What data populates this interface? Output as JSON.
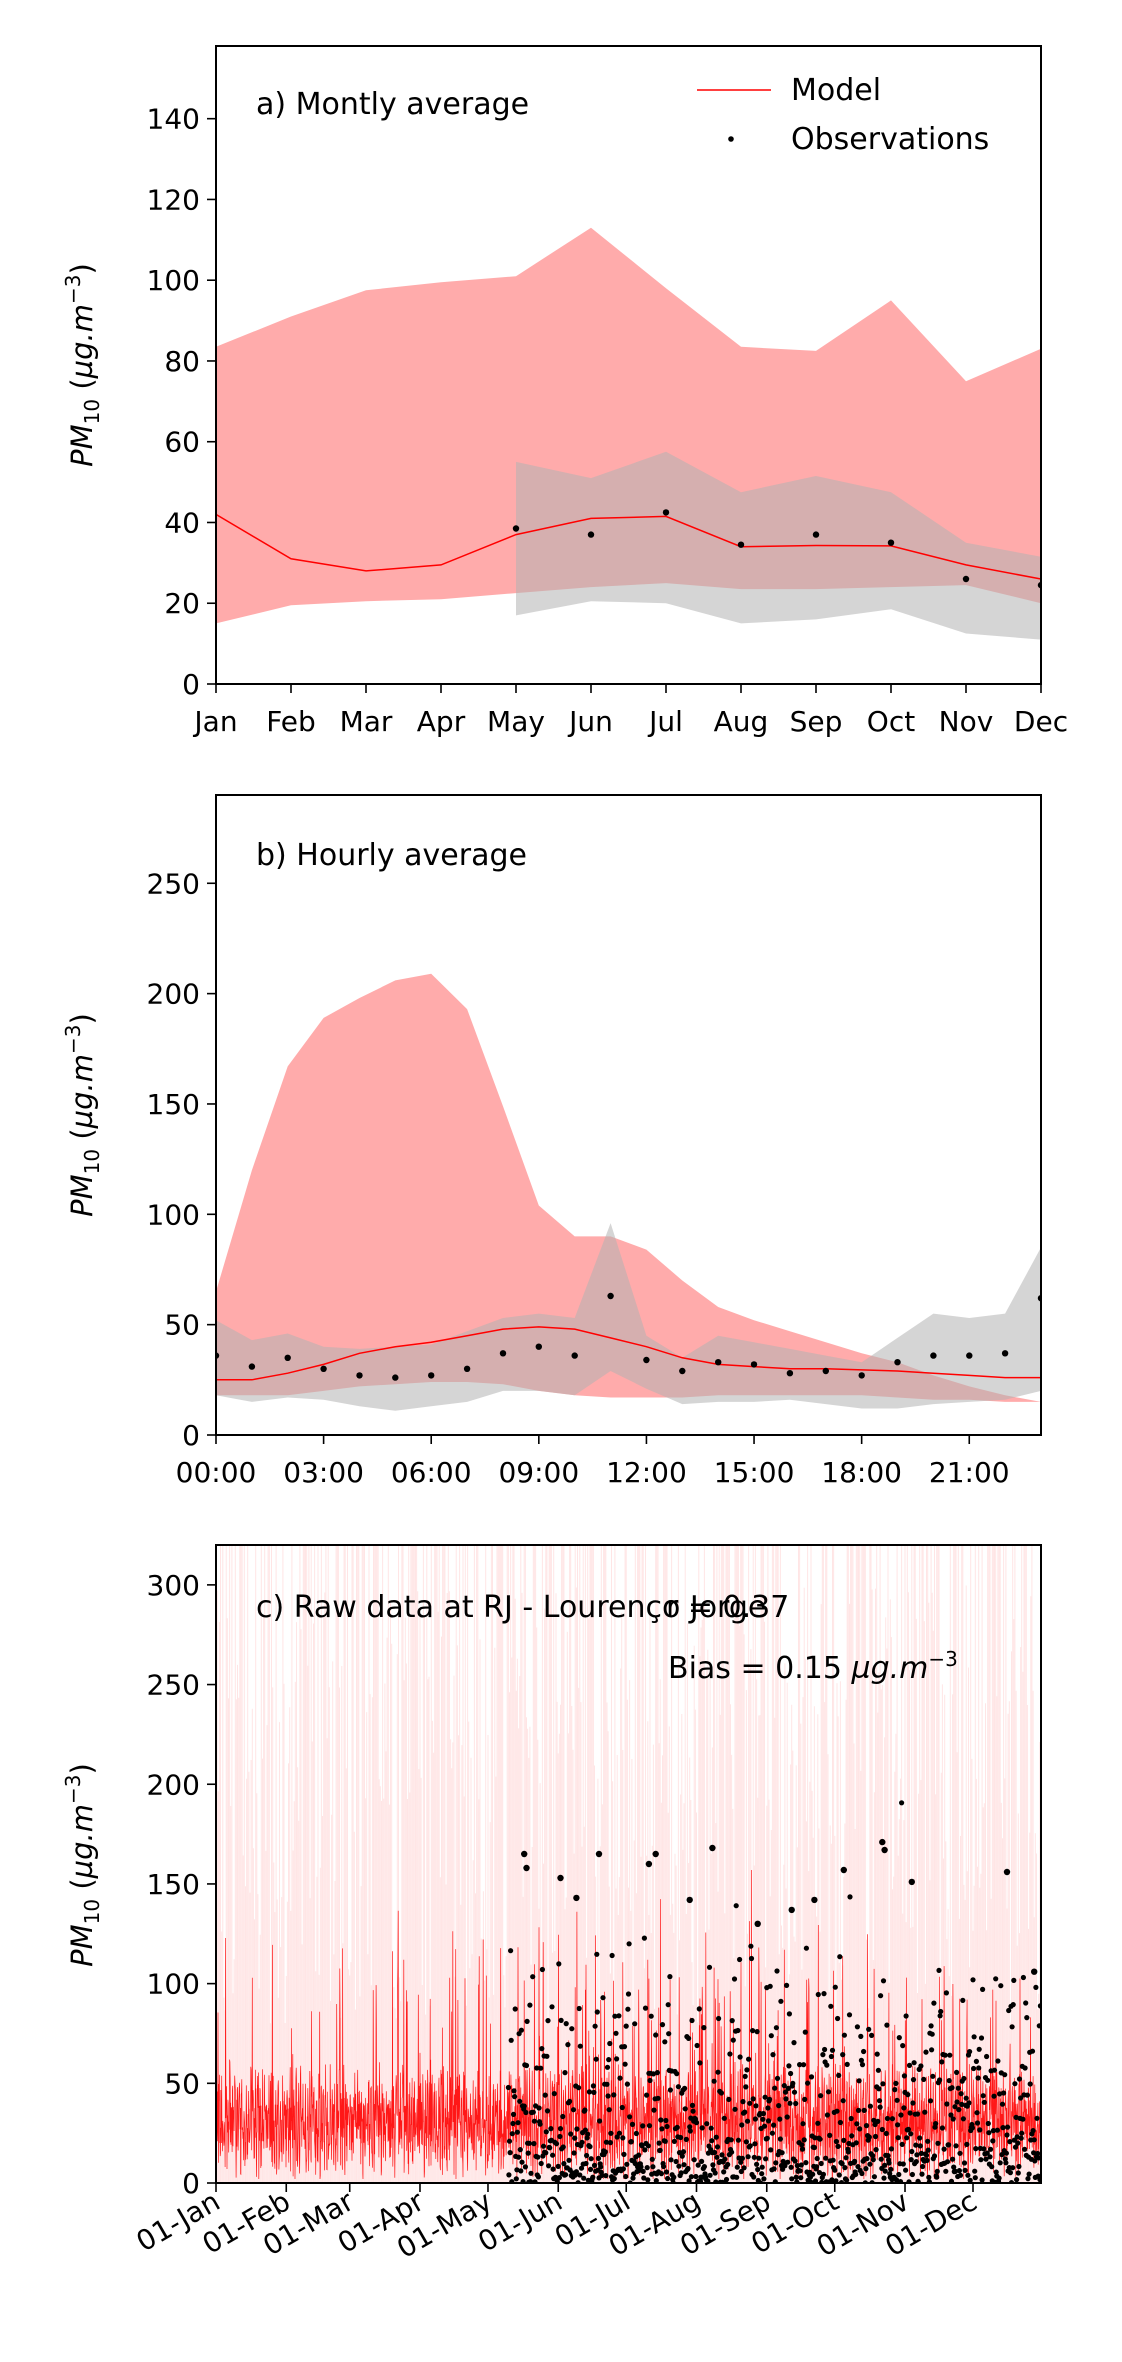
{
  "chart_data": [
    {
      "type": "line",
      "panel_label": "a) Montly average",
      "ylabel": "PM_10 (µg.m^-3)",
      "categories": [
        "Jan",
        "Feb",
        "Mar",
        "Apr",
        "May",
        "Jun",
        "Jul",
        "Aug",
        "Sep",
        "Oct",
        "Nov",
        "Dec"
      ],
      "xlim": [
        0,
        11
      ],
      "ylim": [
        0,
        158
      ],
      "yticks": [
        0,
        20,
        40,
        60,
        80,
        100,
        120,
        140
      ],
      "legend": {
        "position": "top-right",
        "entries": [
          "Model",
          "Observations"
        ]
      },
      "series": [
        {
          "name": "Model",
          "role": "line",
          "color": "#ff0000",
          "values": [
            42,
            31,
            28,
            29.5,
            37,
            41,
            41.5,
            34,
            34.3,
            34.2,
            29.5,
            26
          ]
        },
        {
          "name": "Observations",
          "role": "points",
          "color": "#000000",
          "x": [
            4,
            5,
            6,
            7,
            8,
            9,
            10,
            11
          ],
          "values": [
            38.5,
            37,
            42.5,
            34.5,
            37,
            35,
            26,
            24.5
          ]
        },
        {
          "role": "band",
          "color": "#ff6666",
          "lower": [
            15,
            19.5,
            20.5,
            21,
            22.5,
            24,
            25,
            23.5,
            23.5,
            24,
            24.5,
            20
          ],
          "upper": [
            83.5,
            91,
            97.5,
            99.5,
            101,
            113,
            98,
            83.5,
            82.5,
            95,
            75,
            83
          ]
        },
        {
          "role": "band",
          "color": "#b3b3b3",
          "x": [
            4,
            5,
            6,
            7,
            8,
            9,
            10,
            11
          ],
          "lower": [
            17,
            20.5,
            20,
            15,
            16,
            18.5,
            12.5,
            11
          ],
          "upper": [
            55,
            51,
            57.5,
            47.5,
            51.5,
            47.5,
            35,
            31.5
          ]
        }
      ]
    },
    {
      "type": "line",
      "panel_label": "b) Hourly average",
      "ylabel": "PM_10 (µg.m^-3)",
      "x": [
        0,
        1,
        2,
        3,
        4,
        5,
        6,
        7,
        8,
        9,
        10,
        11,
        12,
        13,
        14,
        15,
        16,
        17,
        18,
        19,
        20,
        21,
        22,
        23
      ],
      "xticks": [
        0,
        3,
        6,
        9,
        12,
        15,
        18,
        21
      ],
      "xticklabels": [
        "00:00",
        "03:00",
        "06:00",
        "09:00",
        "12:00",
        "15:00",
        "18:00",
        "21:00"
      ],
      "xlim": [
        0,
        23
      ],
      "ylim": [
        0,
        290
      ],
      "yticks": [
        0,
        50,
        100,
        150,
        200,
        250
      ],
      "series": [
        {
          "name": "Model",
          "role": "line",
          "color": "#ff0000",
          "values": [
            25,
            25,
            28,
            32,
            37,
            40,
            42,
            45,
            48,
            49,
            48,
            44,
            40,
            35,
            32,
            31,
            30,
            30,
            29.5,
            29,
            28,
            27,
            26,
            26
          ]
        },
        {
          "name": "Observations",
          "role": "points",
          "color": "#000000",
          "values": [
            36,
            31,
            35,
            30,
            27,
            26,
            27,
            30,
            37,
            40,
            36,
            63,
            34,
            29,
            33,
            32,
            28,
            29,
            27,
            33,
            36,
            36,
            37,
            62
          ]
        },
        {
          "role": "band",
          "color": "#ff6666",
          "lower": [
            18,
            18,
            18,
            20,
            22,
            23,
            24,
            24,
            23,
            20,
            18,
            17,
            17,
            17,
            18,
            18,
            18,
            18,
            18,
            17,
            16,
            16,
            15,
            15
          ],
          "upper": [
            65,
            120,
            167,
            189,
            198,
            206,
            209,
            193,
            149,
            104,
            90,
            90,
            84,
            70,
            58,
            52,
            47,
            42,
            37,
            33,
            27,
            22,
            18,
            15
          ]
        },
        {
          "role": "band",
          "color": "#b3b3b3",
          "lower": [
            18,
            15,
            17,
            16,
            13,
            11,
            13,
            15,
            20,
            20,
            18,
            29,
            21,
            14,
            15,
            15,
            16,
            14,
            12,
            12,
            14,
            15,
            16,
            20
          ],
          "upper": [
            52,
            43,
            46,
            40,
            39,
            40,
            41,
            47,
            53,
            55,
            53,
            96,
            45,
            35,
            45,
            42,
            39,
            36,
            33,
            44,
            55,
            53,
            55,
            85
          ]
        }
      ]
    },
    {
      "type": "line",
      "panel_label": "c) Raw data at RJ - Lourenço Jorge",
      "annotations": [
        "r = 0.37",
        "Bias = 0.15 µg.m^-3"
      ],
      "ylabel": "PM_10 (µg.m^-3)",
      "x_unit": "day of year",
      "xlim": [
        1,
        365
      ],
      "xticks": [
        1,
        32,
        60,
        91,
        121,
        152,
        182,
        213,
        244,
        274,
        305,
        335
      ],
      "xticklabels": [
        "01-Jan",
        "01-Feb",
        "01-Mar",
        "01-Apr",
        "01-May",
        "01-Jun",
        "01-Jul",
        "01-Aug",
        "01-Sep",
        "01-Oct",
        "01-Nov",
        "01-Dec"
      ],
      "ylim": [
        0,
        320
      ],
      "yticks": [
        0,
        50,
        100,
        150,
        200,
        250,
        300
      ],
      "series": [
        {
          "name": "Model",
          "role": "line",
          "color": "#ff0000",
          "note": "hourly series, roughly 0–185 µg.m^-3 with light red ensemble spread reaching the top of the axis"
        },
        {
          "name": "Observations",
          "role": "points",
          "color": "#000000",
          "x_range": [
            130,
            365
          ],
          "highlights": [
            [
              137,
              165
            ],
            [
              138,
              158
            ],
            [
              153,
              153
            ],
            [
              160,
              143
            ],
            [
              170,
              165
            ],
            [
              192,
              160
            ],
            [
              195,
              165
            ],
            [
              210,
              142
            ],
            [
              220,
              168
            ],
            [
              240,
              130
            ],
            [
              255,
              137
            ],
            [
              265,
              142
            ],
            [
              278,
              157
            ],
            [
              295,
              171
            ],
            [
              296,
              167
            ],
            [
              308,
              151
            ],
            [
              350,
              156
            ],
            [
              362,
              106
            ]
          ]
        }
      ]
    }
  ]
}
